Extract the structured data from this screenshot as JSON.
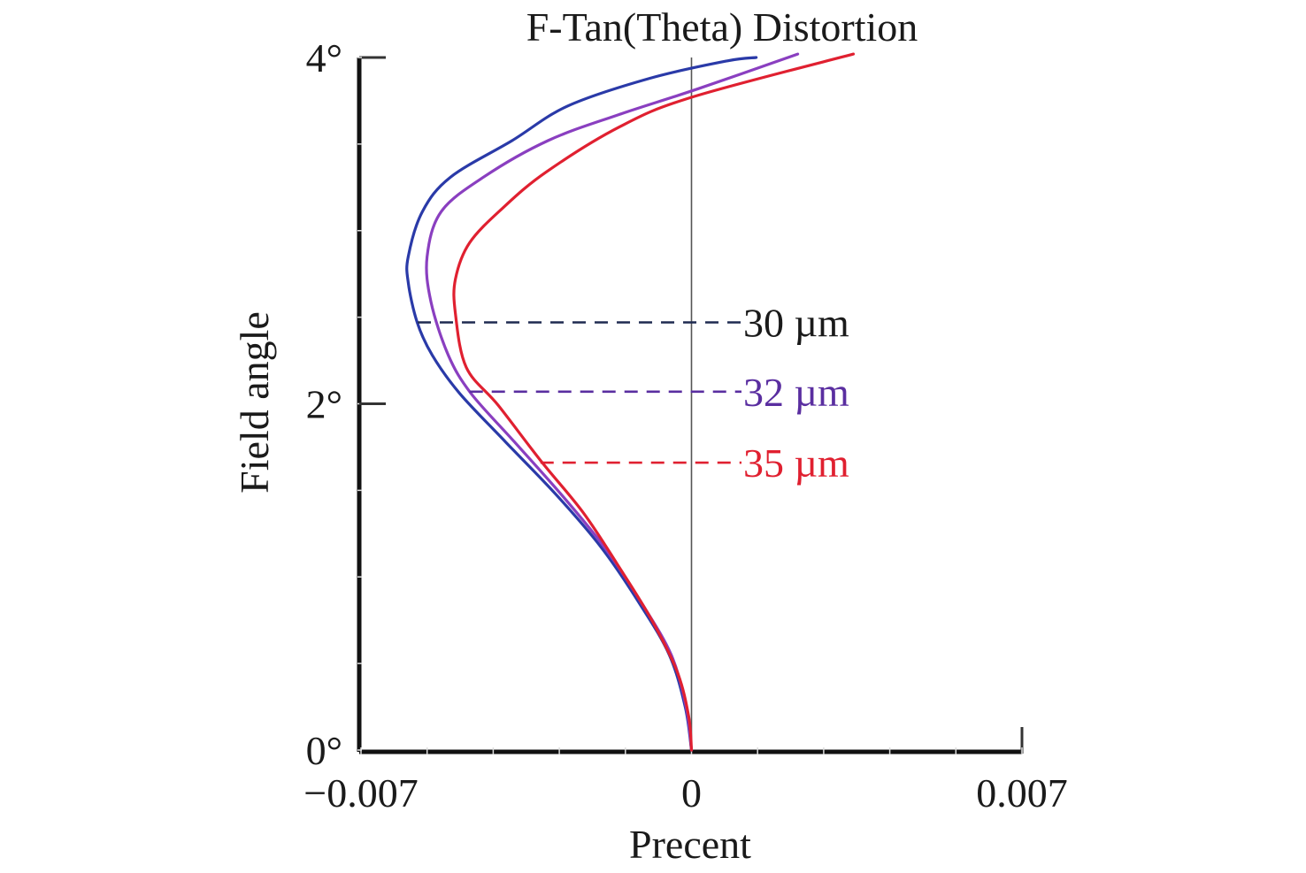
{
  "chart_data": {
    "type": "line",
    "title": "F-Tan(Theta) Distortion",
    "xlabel": "Precent",
    "ylabel": "Field angle",
    "xlim": [
      -0.007,
      0.007
    ],
    "ylim": [
      0,
      4
    ],
    "x_tick_labels": [
      {
        "value": -0.007,
        "label": "−0.007"
      },
      {
        "value": 0,
        "label": "0"
      },
      {
        "value": 0.007,
        "label": "0.007"
      }
    ],
    "y_tick_labels": [
      {
        "value": 0,
        "label": "0°"
      },
      {
        "value": 2,
        "label": "2°"
      },
      {
        "value": 4,
        "label": "4°"
      }
    ],
    "x_minor_ticks": [
      -0.007,
      -0.0056,
      -0.0042,
      -0.0028,
      -0.0014,
      0,
      0.0014,
      0.0028,
      0.0042,
      0.0056,
      0.007
    ],
    "y_minor_ticks": [
      0,
      0.5,
      1,
      1.5,
      2,
      2.5,
      3,
      3.5,
      4
    ],
    "grid": false,
    "zero_line": true,
    "series": [
      {
        "name": "30 µm",
        "color": "#2a3aa8",
        "points": [
          [
            0,
            0
          ],
          [
            -0.00013,
            0.245
          ],
          [
            -0.00047,
            0.55
          ],
          [
            -0.00112,
            0.855
          ],
          [
            -0.00191,
            1.17
          ],
          [
            -0.00285,
            1.47
          ],
          [
            -0.00394,
            1.78
          ],
          [
            -0.00491,
            2.06
          ],
          [
            -0.00549,
            2.28
          ],
          [
            -0.00581,
            2.47
          ],
          [
            -0.006,
            2.7
          ],
          [
            -0.006,
            2.85
          ],
          [
            -0.0057,
            3.11
          ],
          [
            -0.0051,
            3.31
          ],
          [
            -0.0038,
            3.52
          ],
          [
            -0.00262,
            3.72
          ],
          [
            -0.00088,
            3.88
          ],
          [
            0.00075,
            3.98
          ],
          [
            0.00137,
            4.0
          ]
        ]
      },
      {
        "name": "32 µm",
        "color": "#8a3fc0",
        "points": [
          [
            0,
            0
          ],
          [
            -0.00011,
            0.245
          ],
          [
            -0.00043,
            0.55
          ],
          [
            -0.00107,
            0.855
          ],
          [
            -0.00184,
            1.17
          ],
          [
            -0.00274,
            1.47
          ],
          [
            -0.00375,
            1.78
          ],
          [
            -0.00467,
            2.06
          ],
          [
            -0.00515,
            2.28
          ],
          [
            -0.00552,
            2.59
          ],
          [
            -0.0056,
            2.85
          ],
          [
            -0.0053,
            3.11
          ],
          [
            -0.0044,
            3.31
          ],
          [
            -0.00304,
            3.52
          ],
          [
            -0.00154,
            3.67
          ],
          [
            0.00015,
            3.82
          ],
          [
            0.00225,
            4.02
          ]
        ]
      },
      {
        "name": "35 µm",
        "color": "#e02030",
        "points": [
          [
            0,
            0
          ],
          [
            -6e-05,
            0.195
          ],
          [
            -0.0003,
            0.45
          ],
          [
            -0.00084,
            0.75
          ],
          [
            -0.00154,
            1.06
          ],
          [
            -0.00229,
            1.37
          ],
          [
            -0.00319,
            1.67
          ],
          [
            -0.00409,
            1.99
          ],
          [
            -0.00477,
            2.21
          ],
          [
            -0.005,
            2.52
          ],
          [
            -0.005,
            2.72
          ],
          [
            -0.0047,
            2.93
          ],
          [
            -0.004,
            3.13
          ],
          [
            -0.00307,
            3.34
          ],
          [
            -0.00152,
            3.6
          ],
          [
            0,
            3.77
          ],
          [
            0.00343,
            4.02
          ]
        ]
      }
    ],
    "annotations": [
      {
        "label": "30 µm",
        "color": "#1a1a1a",
        "line_color": "#1e2a50",
        "angle": 2.47,
        "from_x": -0.0058
      },
      {
        "label": "32 µm",
        "color": "#5a2ea0",
        "line_color": "#5a2ea0",
        "angle": 2.07,
        "from_x": -0.0047
      },
      {
        "label": "35 µm",
        "color": "#e02030",
        "line_color": "#e02030",
        "angle": 1.66,
        "from_x": -0.0032
      }
    ],
    "legend": "inline-annotations-right"
  }
}
